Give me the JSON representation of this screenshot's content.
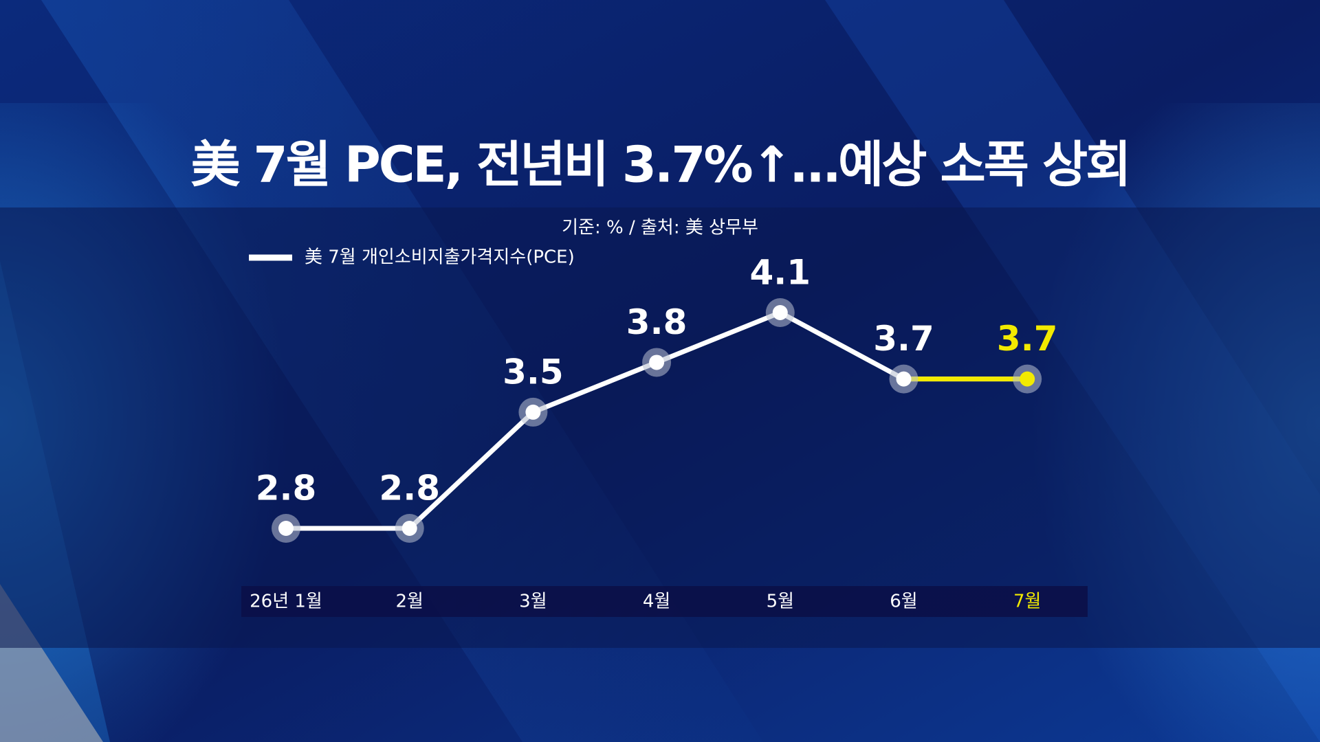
{
  "chart_data": {
    "type": "line",
    "title": "美 7월 PCE, 전년비 3.7%↑…예상 소폭 상회",
    "subtitle": "기준: % / 출처: 美 상무부",
    "categories": [
      "26년 1월",
      "2월",
      "3월",
      "4월",
      "5월",
      "6월",
      "7월"
    ],
    "series": [
      {
        "name": "美 7월 개인소비지출가격지수(PCE)",
        "color": "#ffffff",
        "values": [
          2.8,
          2.8,
          3.5,
          3.8,
          4.1,
          3.7,
          3.7
        ]
      }
    ],
    "highlight_color": "#f2ea00"
  }
}
